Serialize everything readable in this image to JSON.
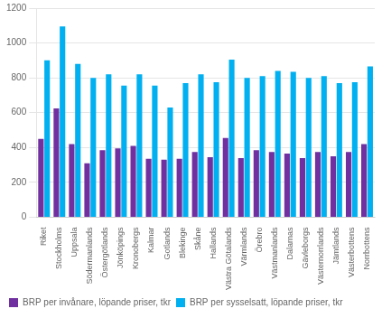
{
  "chart_data": {
    "type": "bar",
    "categories": [
      "Riket",
      "Stockholms",
      "Uppsala",
      "Södermanlands",
      "Östergötlands",
      "Jönköpings",
      "Kronobergs",
      "Kalmar",
      "Gotlands",
      "Blekinge",
      "Skåne",
      "Hallands",
      "Västra Götalands",
      "Värmlands",
      "Örebro",
      "Västmanlands",
      "Dalarnas",
      "Gävleborgs",
      "Västernorrlands",
      "Jämtlands",
      "Västerbottens",
      "Norrbottens"
    ],
    "series": [
      {
        "name": "BRP per invånare, löpande priser, tkr",
        "color": "#7030a0",
        "values": [
          450,
          625,
          420,
          310,
          385,
          395,
          410,
          335,
          330,
          335,
          375,
          345,
          455,
          340,
          385,
          375,
          365,
          340,
          375,
          350,
          375,
          420
        ]
      },
      {
        "name": "BRP per sysselsatt, löpande priser, tkr",
        "color": "#00b0f0",
        "values": [
          900,
          1095,
          880,
          800,
          820,
          755,
          820,
          755,
          630,
          770,
          820,
          775,
          905,
          800,
          810,
          840,
          835,
          800,
          810,
          770,
          775,
          865
        ]
      }
    ],
    "ylim": [
      0,
      1200
    ],
    "yticks": [
      0,
      200,
      400,
      600,
      800,
      1000,
      1200
    ],
    "grid": true,
    "legend": "bottom"
  }
}
